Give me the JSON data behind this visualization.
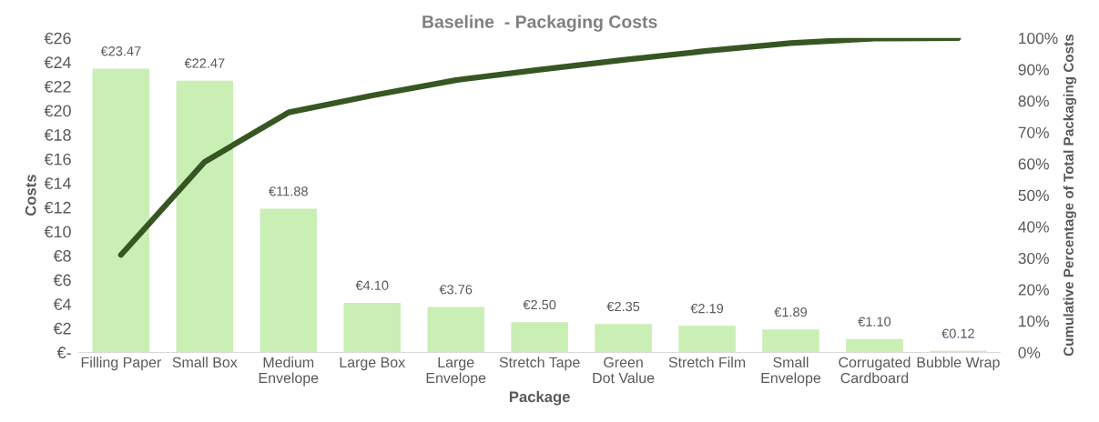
{
  "chart_data": {
    "type": "bar",
    "title": "Baseline  - Packaging Costs",
    "xlabel": "Package",
    "ylabel": "Costs",
    "y2label": "Cumulative Percentage of Total Packaging Costs",
    "categories": [
      "Filling Paper",
      "Small Box",
      "Medium Envelope",
      "Large Box",
      "Large Envelope",
      "Stretch Tape",
      "Green Dot Value",
      "Stretch Film",
      "Small Envelope",
      "Corrugated Cardboard",
      "Bubble Wrap"
    ],
    "series": [
      {
        "color": "#c9efb5",
        "values": [
          23.47,
          22.47,
          11.88,
          4.1,
          3.76,
          2.5,
          2.35,
          2.19,
          1.89,
          1.1,
          0.12
        ],
        "value_labels": [
          "€23.47",
          "€22.47",
          "€11.88",
          "€4.10",
          "€3.76",
          "€2.50",
          "€2.35",
          "€2.19",
          "€1.89",
          "€1.10",
          "€0.12"
        ]
      },
      {
        "type": "line",
        "axis": "y2",
        "color": "#375623",
        "values": [
          31.0,
          60.6,
          76.3,
          81.7,
          86.6,
          89.9,
          93.0,
          95.9,
          98.4,
          99.8,
          100
        ]
      }
    ],
    "ylim": [
      0,
      26
    ],
    "yticks": [
      {
        "value": 0,
        "label": "€-"
      },
      {
        "value": 2,
        "label": "€2"
      },
      {
        "value": 4,
        "label": "€4"
      },
      {
        "value": 6,
        "label": "€6"
      },
      {
        "value": 8,
        "label": "€8"
      },
      {
        "value": 10,
        "label": "€10"
      },
      {
        "value": 12,
        "label": "€12"
      },
      {
        "value": 14,
        "label": "€14"
      },
      {
        "value": 16,
        "label": "€16"
      },
      {
        "value": 18,
        "label": "€18"
      },
      {
        "value": 20,
        "label": "€20"
      },
      {
        "value": 22,
        "label": "€22"
      },
      {
        "value": 24,
        "label": "€24"
      },
      {
        "value": 26,
        "label": "€26"
      }
    ],
    "y2lim": [
      0,
      100
    ],
    "y2ticks": [
      {
        "value": 0,
        "label": "0%"
      },
      {
        "value": 10,
        "label": "10%"
      },
      {
        "value": 20,
        "label": "20%"
      },
      {
        "value": 30,
        "label": "30%"
      },
      {
        "value": 40,
        "label": "40%"
      },
      {
        "value": 50,
        "label": "50%"
      },
      {
        "value": 60,
        "label": "60%"
      },
      {
        "value": 70,
        "label": "70%"
      },
      {
        "value": 80,
        "label": "80%"
      },
      {
        "value": 90,
        "label": "90%"
      },
      {
        "value": 100,
        "label": "100%"
      }
    ],
    "grid": false,
    "marker": "none",
    "line_style": "solid"
  }
}
